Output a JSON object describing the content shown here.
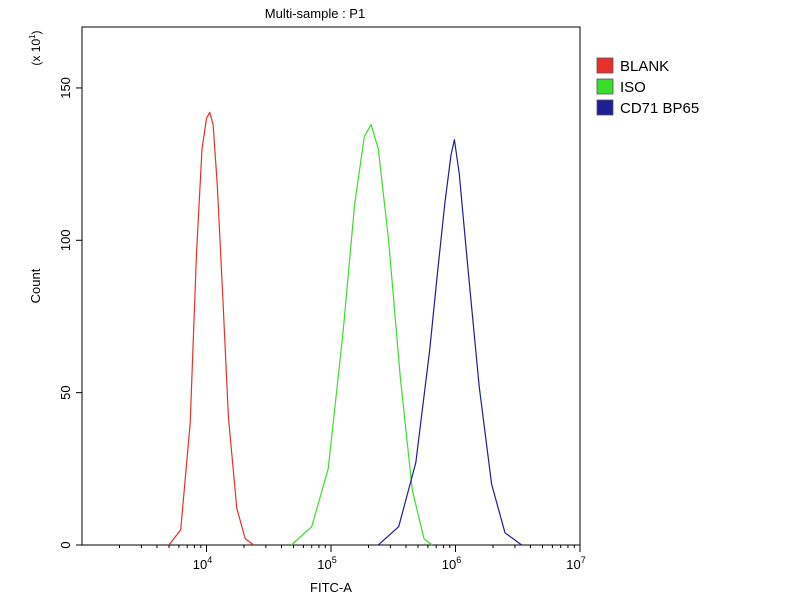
{
  "chart_data": {
    "type": "line",
    "title": "Multi-sample : P1",
    "xlabel": "FITC-A",
    "ylabel": "Count",
    "y_multiplier_label": "(x 10",
    "y_multiplier_exp": "1",
    "y_multiplier_close": ")",
    "x_scale": "log",
    "xlim": [
      1000,
      10000000
    ],
    "ylim": [
      0,
      170
    ],
    "x_ticks": [
      {
        "value": 10000,
        "base": "10",
        "exp": "4"
      },
      {
        "value": 100000,
        "base": "10",
        "exp": "5"
      },
      {
        "value": 1000000,
        "base": "10",
        "exp": "6"
      },
      {
        "value": 10000000,
        "base": "10",
        "exp": "7"
      }
    ],
    "y_ticks": [
      {
        "value": 0,
        "label": "0"
      },
      {
        "value": 50,
        "label": "50"
      },
      {
        "value": 100,
        "label": "100"
      },
      {
        "value": 150,
        "label": "150"
      }
    ],
    "grid": false,
    "legend_position": "top-right",
    "series": [
      {
        "name": "BLANK",
        "color": "#e8302b",
        "points": [
          [
            5000,
            0
          ],
          [
            6200,
            5
          ],
          [
            7400,
            40
          ],
          [
            8300,
            95
          ],
          [
            9200,
            130
          ],
          [
            10000,
            140
          ],
          [
            10600,
            142
          ],
          [
            11300,
            138
          ],
          [
            12200,
            118
          ],
          [
            13500,
            82
          ],
          [
            15000,
            42
          ],
          [
            17500,
            12
          ],
          [
            20500,
            2
          ],
          [
            24000,
            0
          ]
        ]
      },
      {
        "name": "ISO",
        "color": "#3cdc2d",
        "points": [
          [
            48000,
            0
          ],
          [
            70000,
            6
          ],
          [
            95000,
            25
          ],
          [
            125000,
            70
          ],
          [
            155000,
            112
          ],
          [
            185000,
            134
          ],
          [
            210000,
            138
          ],
          [
            240000,
            130
          ],
          [
            290000,
            100
          ],
          [
            360000,
            55
          ],
          [
            450000,
            18
          ],
          [
            560000,
            2
          ],
          [
            650000,
            0
          ]
        ]
      },
      {
        "name": "CD71 BP65",
        "color": "#1e1e96",
        "points": [
          [
            240000,
            0
          ],
          [
            350000,
            6
          ],
          [
            480000,
            27
          ],
          [
            620000,
            64
          ],
          [
            720000,
            90
          ],
          [
            820000,
            112
          ],
          [
            920000,
            128
          ],
          [
            980000,
            133
          ],
          [
            1070000,
            122
          ],
          [
            1250000,
            92
          ],
          [
            1550000,
            52
          ],
          [
            1950000,
            20
          ],
          [
            2500000,
            4
          ],
          [
            3400000,
            0
          ]
        ]
      }
    ]
  }
}
